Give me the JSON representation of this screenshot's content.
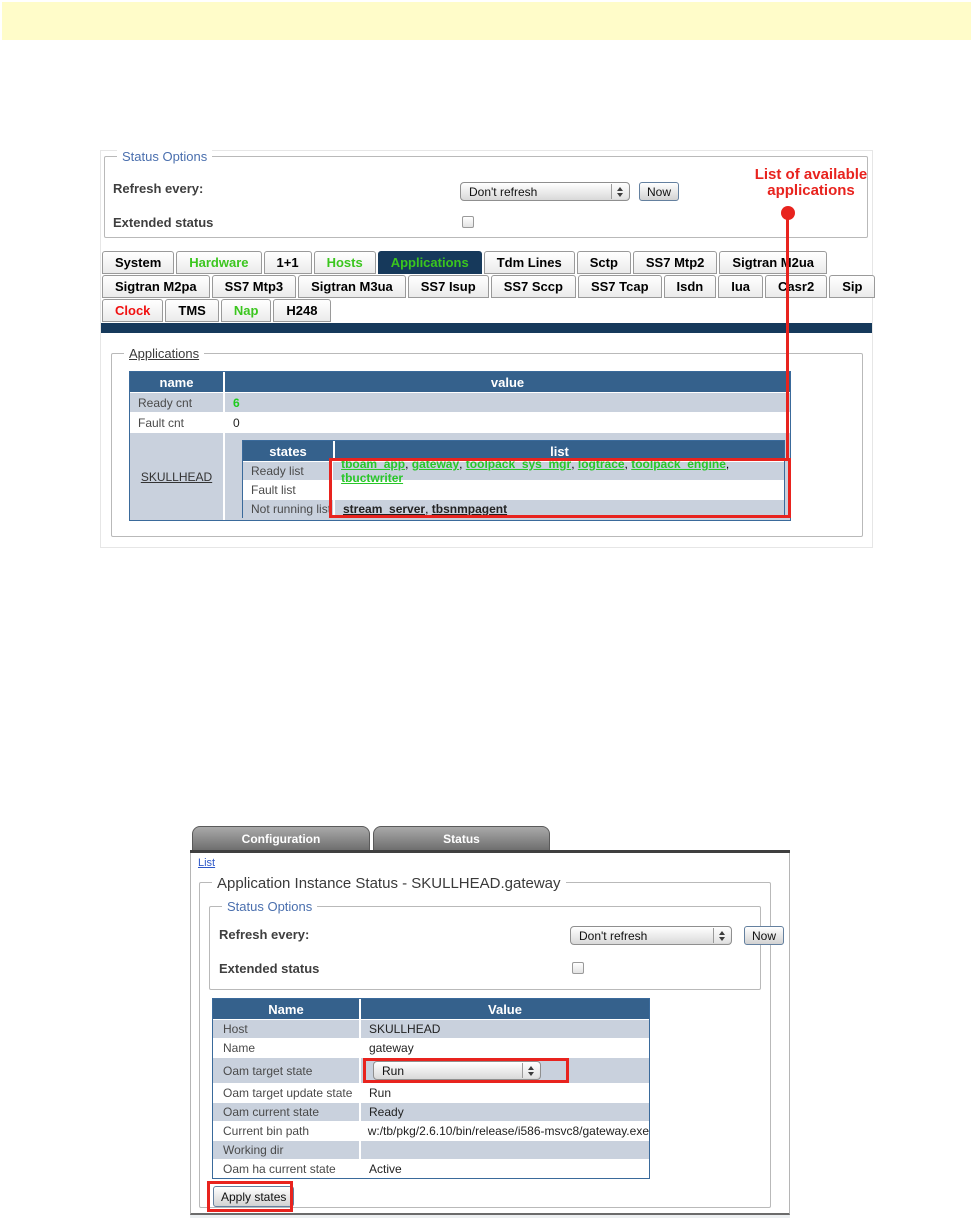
{
  "colors": {
    "yellow_band": "#fffcc9",
    "table_header_blue": "#35618c",
    "row_shade_blue": "#c9d1dd",
    "selected_tab_teal": "#16395b",
    "link_green": "#28c728",
    "annotation_red": "#e8231e",
    "legend_blue": "#4a6fae",
    "link_blue": "#2e58c8"
  },
  "screenshot1": {
    "status_options": {
      "legend": "Status Options",
      "refresh_label": "Refresh every:",
      "refresh_value": "Don't refresh",
      "now_label": "Now",
      "extended_label": "Extended status"
    },
    "annotation": {
      "line1": "List of available",
      "line2": "applications"
    },
    "tabs": {
      "row1": [
        {
          "label": "System",
          "style": "black"
        },
        {
          "label": "Hardware",
          "style": "green"
        },
        {
          "label": "1+1",
          "style": "black"
        },
        {
          "label": "Hosts",
          "style": "green"
        },
        {
          "label": "Applications",
          "style": "green",
          "selected": true
        },
        {
          "label": "Tdm Lines",
          "style": "black"
        },
        {
          "label": "Sctp",
          "style": "black"
        },
        {
          "label": "SS7 Mtp2",
          "style": "black"
        },
        {
          "label": "Sigtran M2ua",
          "style": "black"
        }
      ],
      "row2": [
        {
          "label": "Sigtran M2pa",
          "style": "black"
        },
        {
          "label": "SS7 Mtp3",
          "style": "black"
        },
        {
          "label": "Sigtran M3ua",
          "style": "black"
        },
        {
          "label": "SS7 Isup",
          "style": "black"
        },
        {
          "label": "SS7 Sccp",
          "style": "black"
        },
        {
          "label": "SS7 Tcap",
          "style": "black"
        },
        {
          "label": "Isdn",
          "style": "black"
        },
        {
          "label": "Iua",
          "style": "black"
        },
        {
          "label": "Casr2",
          "style": "black"
        },
        {
          "label": "Sip",
          "style": "black"
        }
      ],
      "row3": [
        {
          "label": "Clock",
          "style": "red"
        },
        {
          "label": "TMS",
          "style": "black"
        },
        {
          "label": "Nap",
          "style": "green"
        },
        {
          "label": "H248",
          "style": "black"
        }
      ]
    },
    "applications": {
      "legend": "Applications",
      "headers": [
        "name",
        "value"
      ],
      "counts": [
        {
          "name": "Ready cnt",
          "value": "6"
        },
        {
          "name": "Fault cnt",
          "value": "0"
        }
      ],
      "host": "SKULLHEAD",
      "nested": {
        "headers": [
          "states",
          "list"
        ],
        "rows": [
          {
            "label": "Ready list",
            "link_style": "green",
            "items": [
              "tboam_app",
              "gateway",
              "toolpack_sys_mgr",
              "logtrace",
              "toolpack_engine",
              "tbuctwriter"
            ]
          },
          {
            "label": "Fault list",
            "link_style": "green",
            "items": []
          },
          {
            "label": "Not running list",
            "link_style": "dark",
            "items": [
              "stream_server",
              "tbsnmpagent"
            ]
          }
        ]
      }
    }
  },
  "screenshot2": {
    "tabs": [
      {
        "label": "Configuration"
      },
      {
        "label": "Status"
      }
    ],
    "list_link": "List",
    "main_legend": "Application Instance Status - SKULLHEAD.gateway",
    "status_options": {
      "legend": "Status Options",
      "refresh_label": "Refresh every:",
      "refresh_value": "Don't refresh",
      "now_label": "Now",
      "extended_label": "Extended status"
    },
    "table": {
      "headers": [
        "Name",
        "Value"
      ],
      "rows": [
        {
          "name": "Host",
          "value": "SKULLHEAD"
        },
        {
          "name": "Name",
          "value": "gateway"
        },
        {
          "name": "Oam target state",
          "value": "Run",
          "widget": "select",
          "highlighted": true
        },
        {
          "name": "Oam target update state",
          "value": "Run"
        },
        {
          "name": "Oam current state",
          "value": "Ready"
        },
        {
          "name": "Current bin path",
          "value": "w:/tb/pkg/2.6.10/bin/release/i586-msvc8/gateway.exe"
        },
        {
          "name": "Working dir",
          "value": ""
        },
        {
          "name": "Oam ha current state",
          "value": "Active"
        }
      ]
    },
    "apply_button": "Apply states"
  }
}
